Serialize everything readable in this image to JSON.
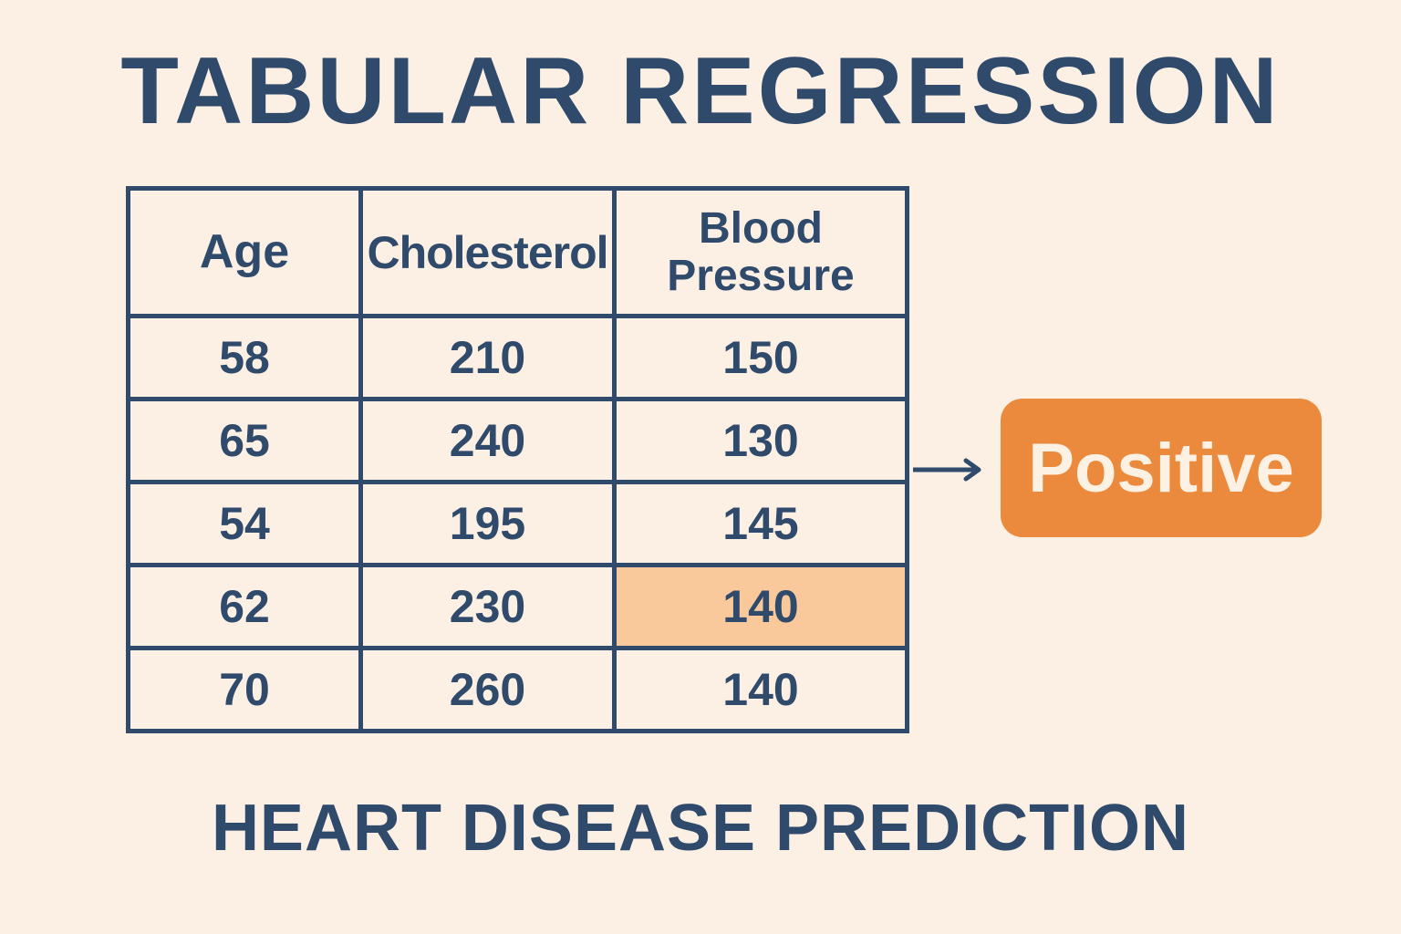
{
  "title": "TABULAR REGRESSION",
  "subtitle": "HEART DISEASE PREDICTION",
  "table": {
    "headers": [
      "Age",
      "Cholesterol",
      "Blood Pressure"
    ],
    "rows": [
      [
        "58",
        "210",
        "150"
      ],
      [
        "65",
        "240",
        "130"
      ],
      [
        "54",
        "195",
        "145"
      ],
      [
        "62",
        "230",
        "140"
      ],
      [
        "70",
        "260",
        "140"
      ]
    ],
    "highlighted_cell": {
      "row": 3,
      "column": 2
    }
  },
  "result": "Positive",
  "colors": {
    "background": "#fcf0e4",
    "text": "#2f4a6b",
    "accent": "#eb8a3c",
    "highlight": "#f9c99b"
  }
}
